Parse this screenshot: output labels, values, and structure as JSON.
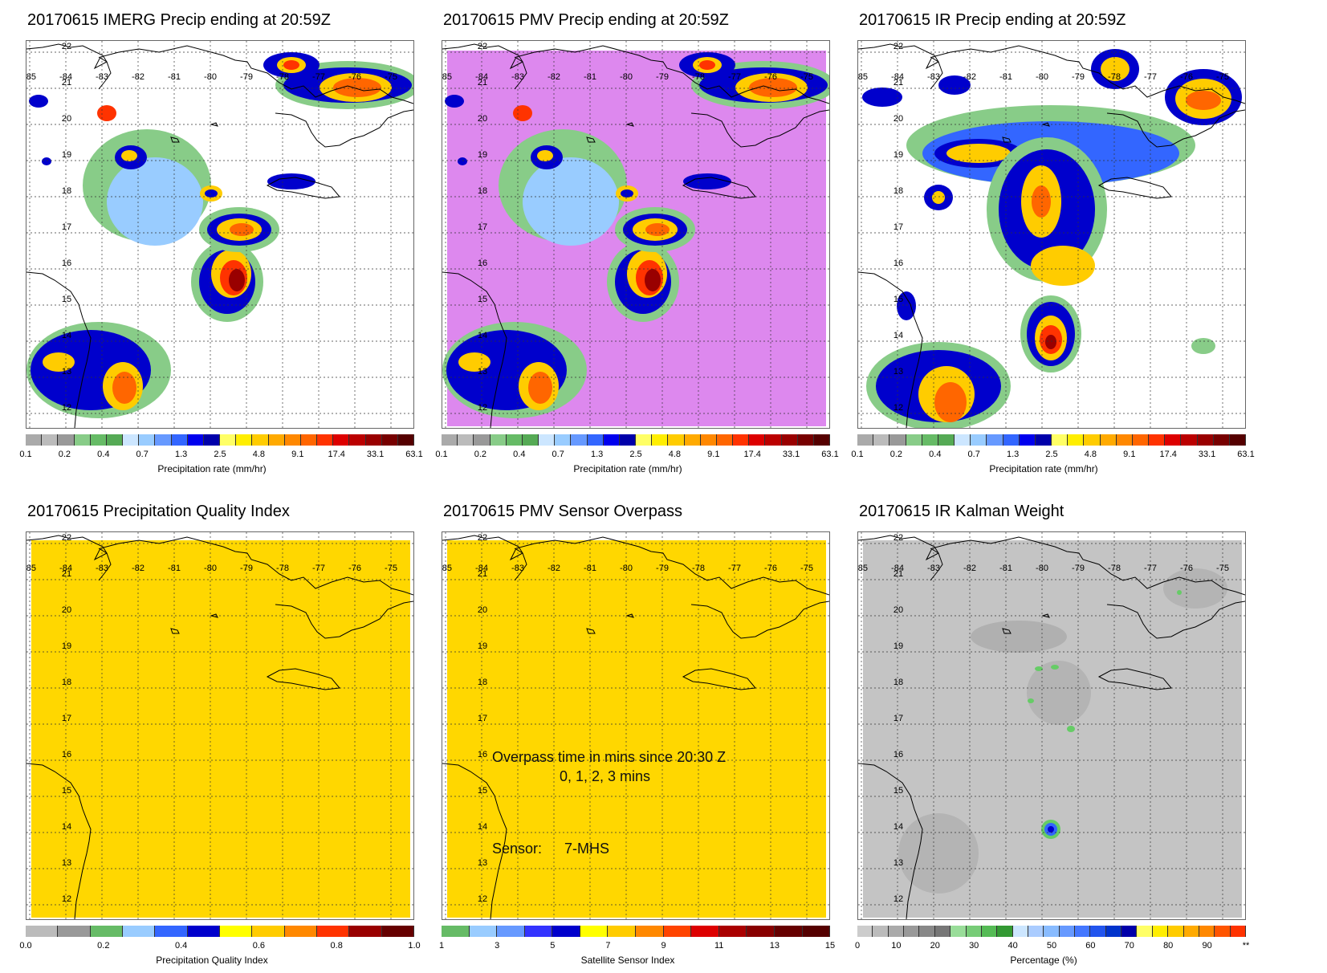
{
  "colors": {
    "yellow_field": "#ffd700",
    "pmv_bg": "#dd88ee",
    "gray_field": "#c4c4c4",
    "heavy": "#ff3300",
    "moderate": "#ffcc00",
    "light_blue": "#3399ff",
    "dark_blue": "#0000cc",
    "green": "#66cc66"
  },
  "map": {
    "lon_ticks": [
      "-85",
      "-84",
      "-83",
      "-82",
      "-81",
      "-80",
      "-79",
      "-78",
      "-77",
      "-76",
      "-75"
    ],
    "lat_ticks": [
      "22",
      "21",
      "20",
      "19",
      "18",
      "17",
      "16",
      "15",
      "14",
      "13",
      "12"
    ]
  },
  "precip_scale": {
    "colors": [
      "#aaaaaa",
      "#bbbbbb",
      "#999999",
      "#88cc88",
      "#66bb66",
      "#55aa55",
      "#cce6ff",
      "#99ccff",
      "#6699ff",
      "#3366ff",
      "#0000ee",
      "#0000aa",
      "#ffff66",
      "#ffee00",
      "#ffcc00",
      "#ffaa00",
      "#ff8800",
      "#ff6600",
      "#ff3300",
      "#dd0000",
      "#bb0000",
      "#990000",
      "#770000",
      "#550000"
    ],
    "ticks": [
      "0.1",
      "0.2",
      "0.4",
      "0.7",
      "1.3",
      "2.5",
      "4.8",
      "9.1",
      "17.4",
      "33.1",
      "63.1"
    ],
    "label": "Precipitation rate (mm/hr)"
  },
  "panels": [
    {
      "title": "20170615 IMERG Precip ending at 20:59Z"
    },
    {
      "title": "20170615 PMV Precip ending at 20:59Z"
    },
    {
      "title": "20170615 IR Precip ending at 20:59Z"
    },
    {
      "title": "20170615 Precipitation Quality Index",
      "cb_label": "Precipitation Quality Index",
      "ticks": [
        "0.0",
        "0.2",
        "0.4",
        "0.6",
        "0.8",
        "1.0"
      ],
      "colors": [
        "#bbbbbb",
        "#999999",
        "#66bb66",
        "#99ccff",
        "#3366ff",
        "#0000cc",
        "#ffff00",
        "#ffcc00",
        "#ff8800",
        "#ff3300",
        "#990000",
        "#660000"
      ]
    },
    {
      "title": "20170615 PMV Sensor Overpass",
      "cb_label": "Satellite Sensor Index",
      "ticks": [
        "1",
        "3",
        "5",
        "7",
        "9",
        "11",
        "13",
        "15"
      ],
      "colors": [
        "#66bb66",
        "#99ccff",
        "#6699ff",
        "#3333ff",
        "#0000cc",
        "#ffff00",
        "#ffcc00",
        "#ff8800",
        "#ff4400",
        "#dd0000",
        "#aa0000",
        "#880000",
        "#660000",
        "#550000"
      ],
      "overlay": {
        "line1": "Overpass time in mins since 20:30 Z",
        "line2": "0, 1, 2, 3 mins",
        "sensor_label": "Sensor:",
        "sensor_value": "7-MHS"
      }
    },
    {
      "title": "20170615 IR Kalman Weight",
      "cb_label": "Percentage (%)",
      "ticks": [
        "0",
        "10",
        "20",
        "30",
        "40",
        "50",
        "60",
        "70",
        "80",
        "90",
        "**"
      ],
      "colors": [
        "#cccccc",
        "#bbbbbb",
        "#aaaaaa",
        "#999999",
        "#888888",
        "#777777",
        "#99dd99",
        "#77cc77",
        "#55bb55",
        "#339933",
        "#cce6ff",
        "#aaccff",
        "#88bbff",
        "#6699ff",
        "#4477ff",
        "#2255ee",
        "#0033cc",
        "#0000aa",
        "#ffff66",
        "#ffee00",
        "#ffcc00",
        "#ffaa00",
        "#ff8800",
        "#ff5500",
        "#ff3300"
      ]
    }
  ]
}
